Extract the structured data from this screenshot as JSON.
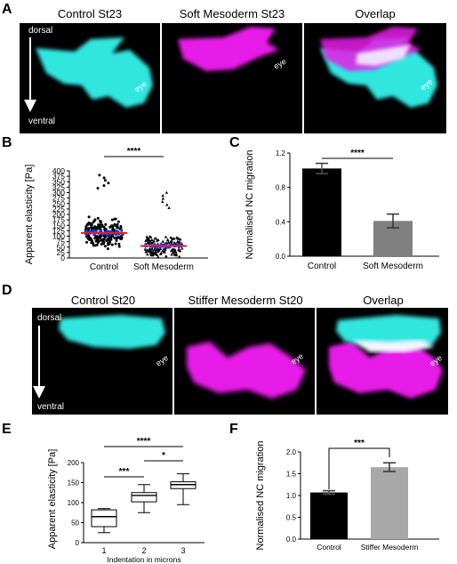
{
  "panel_labels": {
    "a": "A",
    "b": "B",
    "c": "C",
    "d": "D",
    "e": "E",
    "f": "F"
  },
  "panel_a": {
    "titles": [
      "Control St23",
      "Soft Mesoderm St23",
      "Overlap"
    ],
    "dorsal": "dorsal",
    "ventral": "ventral",
    "eye": "eye"
  },
  "panel_d": {
    "titles": [
      "Control St20",
      "Stiffer Mesoderm St20",
      "Overlap"
    ],
    "dorsal": "dorsal",
    "ventral": "ventral",
    "eye": "eye"
  },
  "colors": {
    "cyan": "#33e6e0",
    "magenta": "#e81ee8",
    "red": "#e0201b",
    "blue": "#2233cc",
    "bar_dark": "#000000",
    "bar_grey": "#808080",
    "bar_light": "#a8a8a8"
  },
  "chart_data": [
    {
      "panel": "B",
      "type": "scatter",
      "ylabel": "Apparent elasticity [Pa]",
      "ylim": [
        0,
        400
      ],
      "yticks": [
        0,
        25,
        50,
        75,
        100,
        125,
        150,
        175,
        200,
        225,
        250,
        275,
        300,
        325,
        350,
        375,
        400
      ],
      "categories": [
        "Control",
        "Soft Mesoderm"
      ],
      "series": [
        {
          "markers": "circles",
          "mean": 115,
          "range": [
            5,
            380
          ],
          "median_line": 115
        },
        {
          "markers": "triangles",
          "mean": 55,
          "range": [
            5,
            300
          ],
          "median_line": 55
        }
      ],
      "significance": "****"
    },
    {
      "panel": "C",
      "type": "bar",
      "ylabel": "Normalised NC migration",
      "ylim": [
        0,
        1.2
      ],
      "yticks": [
        "0.0",
        "0.4",
        "0.8",
        "1.2"
      ],
      "categories": [
        "Control",
        "Soft Mesoderm"
      ],
      "values": [
        1.02,
        0.41
      ],
      "errors": [
        0.06,
        0.08
      ],
      "significance": "****"
    },
    {
      "panel": "E",
      "type": "box",
      "ylabel": "Apparent elasticity [Pa]",
      "xlabel": "Indentation in microns",
      "ylim": [
        0,
        200
      ],
      "yticks": [
        0,
        50,
        100,
        150,
        200
      ],
      "categories": [
        "1",
        "2",
        "3"
      ],
      "boxes": [
        {
          "min": 25,
          "q1": 40,
          "median": 65,
          "q3": 82,
          "max": 85
        },
        {
          "min": 75,
          "q1": 102,
          "median": 118,
          "q3": 125,
          "max": 145
        },
        {
          "min": 95,
          "q1": 135,
          "median": 145,
          "q3": 152,
          "max": 172
        }
      ],
      "comparisons": [
        {
          "pair": [
            "1",
            "2"
          ],
          "label": "***"
        },
        {
          "pair": [
            "2",
            "3"
          ],
          "label": "*"
        },
        {
          "pair": [
            "1",
            "3"
          ],
          "label": "****"
        }
      ]
    },
    {
      "panel": "F",
      "type": "bar",
      "ylabel": "Normalised NC migration",
      "ylim": [
        0,
        2.0
      ],
      "yticks": [
        "0.0",
        "0.5",
        "1.0",
        "1.5",
        "2.0"
      ],
      "categories": [
        "Control",
        "Stiffer Mesoderm"
      ],
      "values": [
        1.07,
        1.65
      ],
      "errors": [
        0.04,
        0.1
      ],
      "significance": "***"
    }
  ]
}
